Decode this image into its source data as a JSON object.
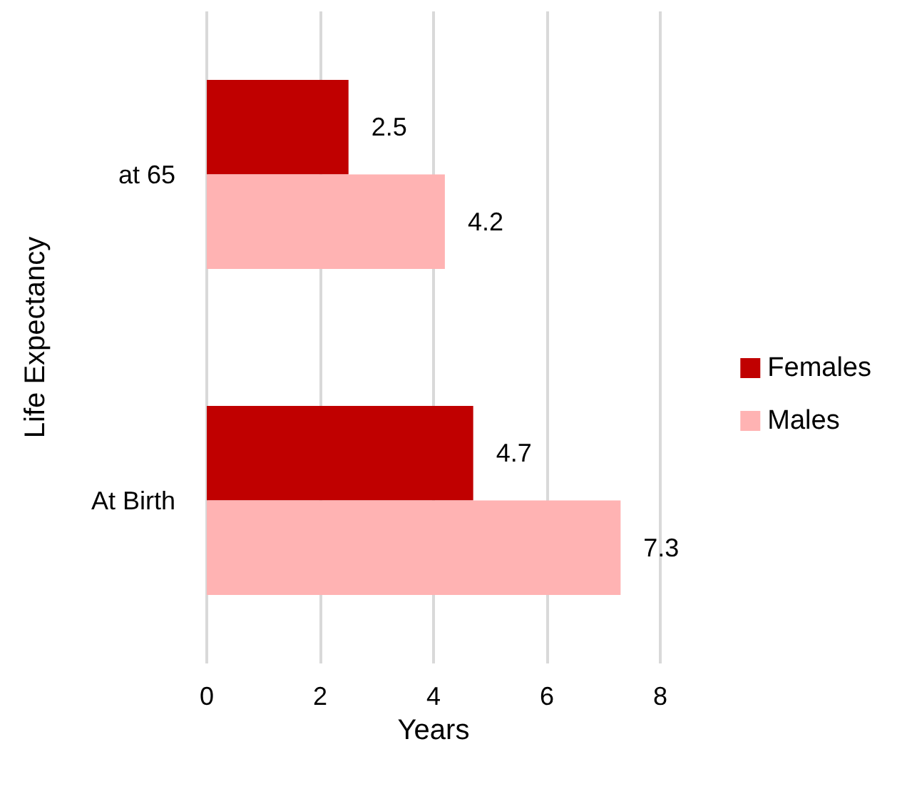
{
  "chart_data": {
    "type": "bar",
    "orientation": "horizontal",
    "xlabel": "Years",
    "ylabel": "Life Expectancy",
    "categories": [
      "at 65",
      "At Birth"
    ],
    "series": [
      {
        "name": "Females",
        "color": "#c00000",
        "values": [
          2.5,
          4.7
        ]
      },
      {
        "name": "Males",
        "color": "#ffb3b3",
        "values": [
          4.2,
          7.3
        ]
      }
    ],
    "xlim": [
      0,
      8
    ],
    "xticks": [
      0,
      2,
      4,
      6,
      8
    ],
    "grid": "x",
    "legend": "right",
    "data_labels": true
  }
}
